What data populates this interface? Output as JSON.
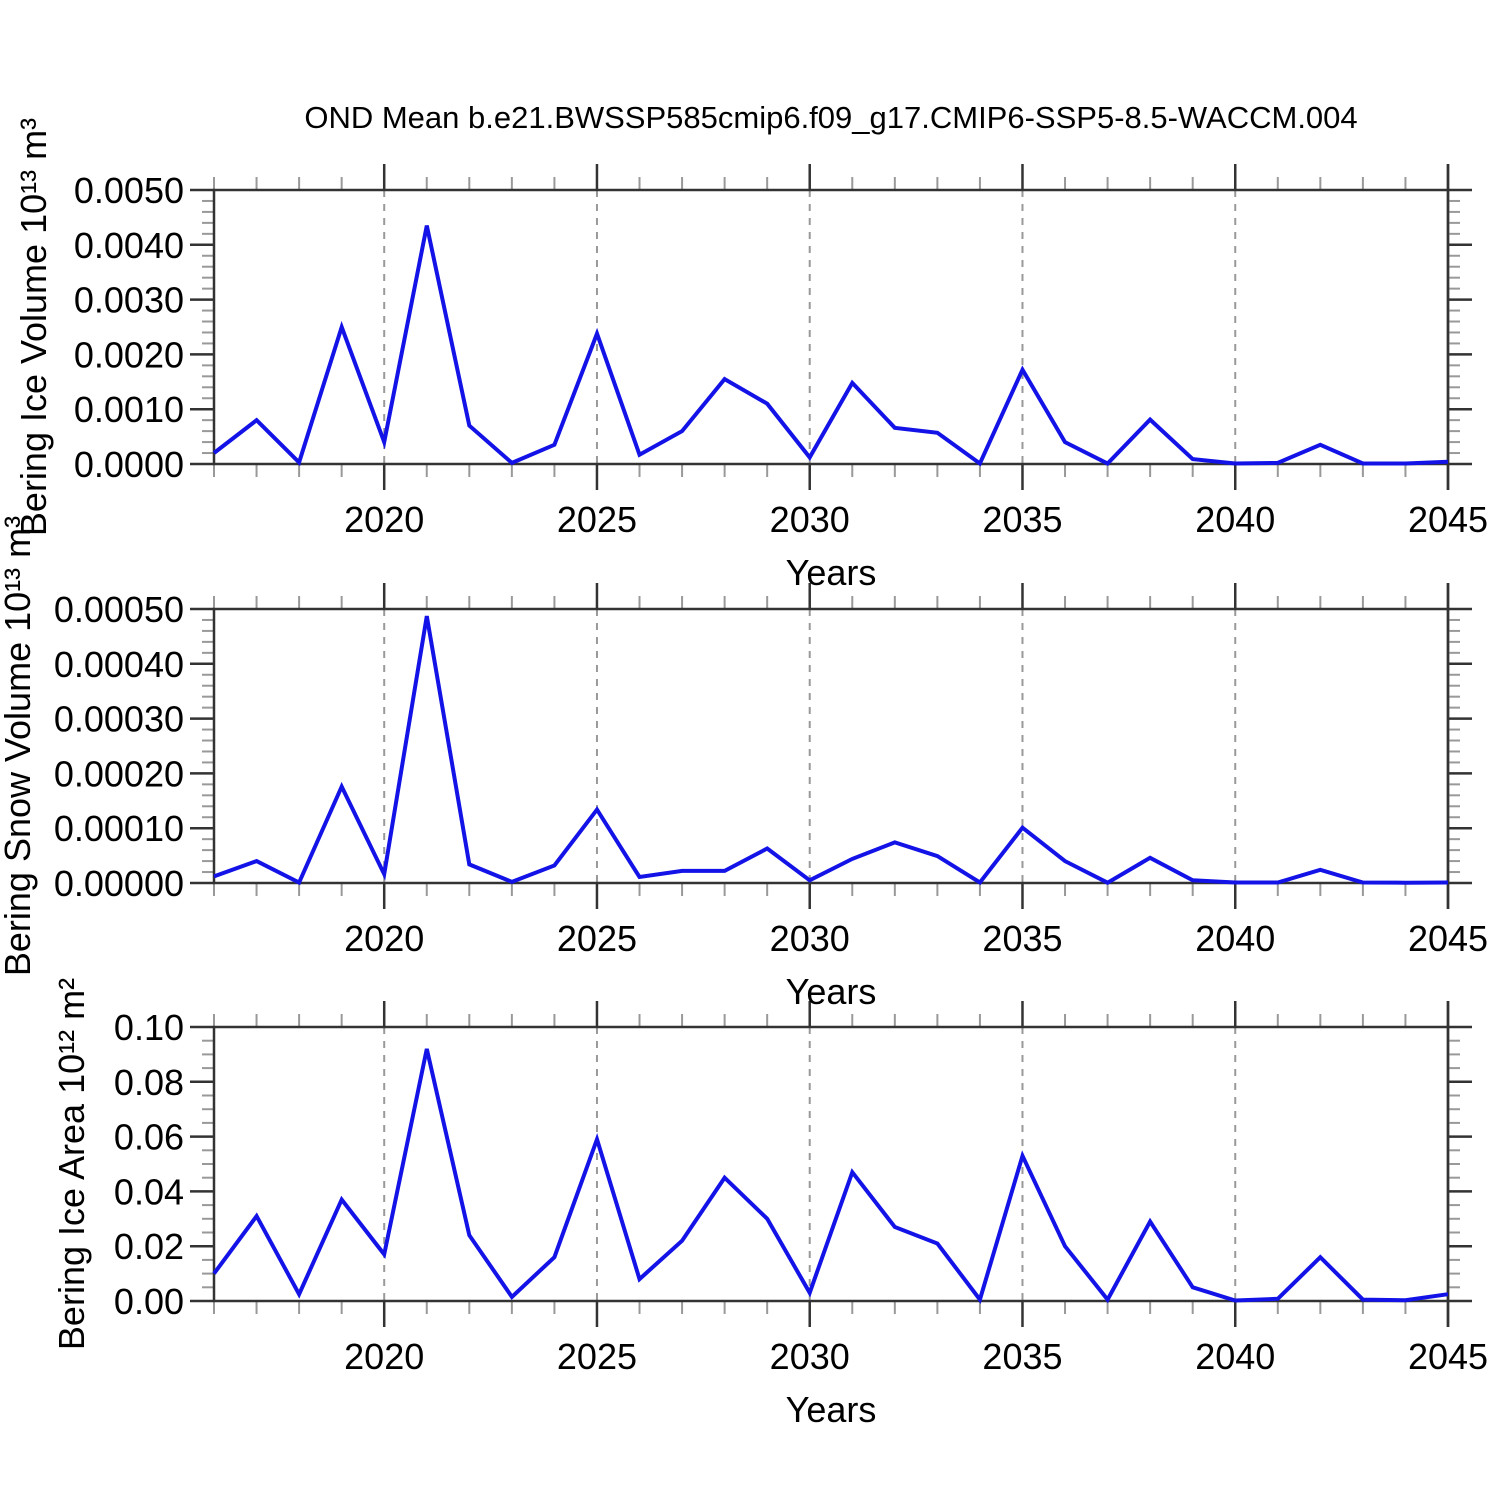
{
  "title": "OND Mean b.e21.BWSSP585cmip6.f09_g17.CMIP6-SSP5-8.5-WACCM.004",
  "line_color": "#1313e8",
  "grid_color": "#999999",
  "axis_color": "#333333",
  "chart_data": [
    {
      "type": "line",
      "id": "bering-ice-volume",
      "ylabel": "Bering Ice Volume 10¹³ m³",
      "xlabel": "Years",
      "x": [
        2016,
        2017,
        2018,
        2019,
        2020,
        2021,
        2022,
        2023,
        2024,
        2025,
        2026,
        2027,
        2028,
        2029,
        2030,
        2031,
        2032,
        2033,
        2034,
        2035,
        2036,
        2037,
        2038,
        2039,
        2040,
        2041,
        2042,
        2043,
        2044,
        2045
      ],
      "values": [
        0.0002,
        0.0008,
        3e-05,
        0.0025,
        0.0004,
        0.00435,
        0.0007,
        2e-05,
        0.00035,
        0.00238,
        0.00017,
        0.0006,
        0.00155,
        0.0011,
        0.00012,
        0.00148,
        0.00066,
        0.00057,
        1e-05,
        0.00172,
        0.0004,
        1e-05,
        0.00081,
        9e-05,
        1e-05,
        2e-05,
        0.00035,
        1e-05,
        1e-05,
        4e-05
      ],
      "ylim": [
        0,
        0.005
      ],
      "yticks": [
        0,
        0.001,
        0.002,
        0.003,
        0.004,
        0.005
      ],
      "ytick_labels": [
        "0.0000",
        "0.0010",
        "0.0020",
        "0.0030",
        "0.0040",
        "0.0050"
      ],
      "y_minor_step": 0.0002,
      "xlim": [
        2016,
        2045
      ],
      "xticks": [
        2020,
        2025,
        2030,
        2035,
        2040,
        2045
      ],
      "xtick_labels": [
        "2020",
        "2025",
        "2030",
        "2035",
        "2040",
        "2045"
      ],
      "x_minor_step": 1,
      "grid_years_dashed": [
        2020,
        2025,
        2030,
        2035,
        2040
      ],
      "solid_vline_year": 2045,
      "legend": "none"
    },
    {
      "type": "line",
      "id": "bering-snow-volume",
      "ylabel": "Bering Snow Volume 10¹³ m³",
      "xlabel": "Years",
      "x": [
        2016,
        2017,
        2018,
        2019,
        2020,
        2021,
        2022,
        2023,
        2024,
        2025,
        2026,
        2027,
        2028,
        2029,
        2030,
        2031,
        2032,
        2033,
        2034,
        2035,
        2036,
        2037,
        2038,
        2039,
        2040,
        2041,
        2042,
        2043,
        2044,
        2045
      ],
      "values": [
        1.2e-05,
        4e-05,
        1e-06,
        0.000176,
        1.6e-05,
        0.000487,
        3.4e-05,
        2e-06,
        3.2e-05,
        0.000134,
        1.1e-05,
        2.2e-05,
        2.2e-05,
        6.3e-05,
        5e-06,
        4.4e-05,
        7.4e-05,
        4.9e-05,
        1e-06,
        0.000101,
        4e-05,
        5e-07,
        4.6e-05,
        5e-06,
        1e-06,
        1e-06,
        2.4e-05,
        1e-06,
        5e-07,
        1e-06
      ],
      "ylim": [
        0,
        0.0005
      ],
      "yticks": [
        0,
        0.0001,
        0.0002,
        0.0003,
        0.0004,
        0.0005
      ],
      "ytick_labels": [
        "0.00000",
        "0.00010",
        "0.00020",
        "0.00030",
        "0.00040",
        "0.00050"
      ],
      "y_minor_step": 2e-05,
      "xlim": [
        2016,
        2045
      ],
      "xticks": [
        2020,
        2025,
        2030,
        2035,
        2040,
        2045
      ],
      "xtick_labels": [
        "2020",
        "2025",
        "2030",
        "2035",
        "2040",
        "2045"
      ],
      "x_minor_step": 1,
      "grid_years_dashed": [
        2020,
        2025,
        2030,
        2035,
        2040
      ],
      "solid_vline_year": 2045,
      "legend": "none"
    },
    {
      "type": "line",
      "id": "bering-ice-area",
      "ylabel": "Bering Ice Area 10¹² m²",
      "xlabel": "Years",
      "x": [
        2016,
        2017,
        2018,
        2019,
        2020,
        2021,
        2022,
        2023,
        2024,
        2025,
        2026,
        2027,
        2028,
        2029,
        2030,
        2031,
        2032,
        2033,
        2034,
        2035,
        2036,
        2037,
        2038,
        2039,
        2040,
        2041,
        2042,
        2043,
        2044,
        2045
      ],
      "values": [
        0.01,
        0.031,
        0.0025,
        0.037,
        0.017,
        0.092,
        0.024,
        0.0015,
        0.016,
        0.059,
        0.008,
        0.022,
        0.045,
        0.03,
        0.003,
        0.047,
        0.027,
        0.021,
        0.0005,
        0.053,
        0.02,
        0.0005,
        0.029,
        0.005,
        0.0002,
        0.0008,
        0.016,
        0.0005,
        0.0003,
        0.0025
      ],
      "ylim": [
        0,
        0.1
      ],
      "yticks": [
        0,
        0.02,
        0.04,
        0.06,
        0.08,
        0.1
      ],
      "ytick_labels": [
        "0.00",
        "0.02",
        "0.04",
        "0.06",
        "0.08",
        "0.10"
      ],
      "y_minor_step": 0.005,
      "xlim": [
        2016,
        2045
      ],
      "xticks": [
        2020,
        2025,
        2030,
        2035,
        2040,
        2045
      ],
      "xtick_labels": [
        "2020",
        "2025",
        "2030",
        "2035",
        "2040",
        "2045"
      ],
      "x_minor_step": 1,
      "grid_years_dashed": [
        2020,
        2025,
        2030,
        2035,
        2040
      ],
      "solid_vline_year": 2045,
      "legend": "none"
    }
  ]
}
